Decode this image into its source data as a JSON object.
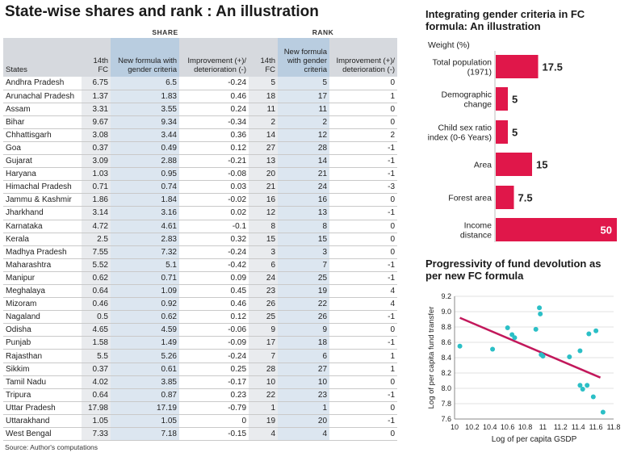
{
  "title": "State-wise shares and rank : An illustration",
  "table": {
    "group_share": "SHARE",
    "group_rank": "RANK",
    "columns": [
      "States",
      "14th FC",
      "New formula with gender criteria",
      "Improvement (+)/ deterioration (-)",
      "14th FC",
      "New formula with gender criteria",
      "Improvement (+)/ deterioration (-)"
    ],
    "rows": [
      [
        "Andhra Pradesh",
        "6.75",
        "6.5",
        "-0.24",
        "5",
        "5",
        "0"
      ],
      [
        "Arunachal Pradesh",
        "1.37",
        "1.83",
        "0.46",
        "18",
        "17",
        "1"
      ],
      [
        "Assam",
        "3.31",
        "3.55",
        "0.24",
        "11",
        "11",
        "0"
      ],
      [
        "Bihar",
        "9.67",
        "9.34",
        "-0.34",
        "2",
        "2",
        "0"
      ],
      [
        "Chhattisgarh",
        "3.08",
        "3.44",
        "0.36",
        "14",
        "12",
        "2"
      ],
      [
        "Goa",
        "0.37",
        "0.49",
        "0.12",
        "27",
        "28",
        "-1"
      ],
      [
        "Gujarat",
        "3.09",
        "2.88",
        "-0.21",
        "13",
        "14",
        "-1"
      ],
      [
        "Haryana",
        "1.03",
        "0.95",
        "-0.08",
        "20",
        "21",
        "-1"
      ],
      [
        "Himachal Pradesh",
        "0.71",
        "0.74",
        "0.03",
        "21",
        "24",
        "-3"
      ],
      [
        "Jammu & Kashmir",
        "1.86",
        "1.84",
        "-0.02",
        "16",
        "16",
        "0"
      ],
      [
        "Jharkhand",
        "3.14",
        "3.16",
        "0.02",
        "12",
        "13",
        "-1"
      ],
      [
        "Karnataka",
        "4.72",
        "4.61",
        "-0.1",
        "8",
        "8",
        "0"
      ],
      [
        "Kerala",
        "2.5",
        "2.83",
        "0.32",
        "15",
        "15",
        "0"
      ],
      [
        "Madhya Pradesh",
        "7.55",
        "7.32",
        "-0.24",
        "3",
        "3",
        "0"
      ],
      [
        "Maharashtra",
        "5.52",
        "5.1",
        "-0.42",
        "6",
        "7",
        "-1"
      ],
      [
        "Manipur",
        "0.62",
        "0.71",
        "0.09",
        "24",
        "25",
        "-1"
      ],
      [
        "Meghalaya",
        "0.64",
        "1.09",
        "0.45",
        "23",
        "19",
        "4"
      ],
      [
        "Mizoram",
        "0.46",
        "0.92",
        "0.46",
        "26",
        "22",
        "4"
      ],
      [
        "Nagaland",
        "0.5",
        "0.62",
        "0.12",
        "25",
        "26",
        "-1"
      ],
      [
        "Odisha",
        "4.65",
        "4.59",
        "-0.06",
        "9",
        "9",
        "0"
      ],
      [
        "Punjab",
        "1.58",
        "1.49",
        "-0.09",
        "17",
        "18",
        "-1"
      ],
      [
        "Rajasthan",
        "5.5",
        "5.26",
        "-0.24",
        "7",
        "6",
        "1"
      ],
      [
        "Sikkim",
        "0.37",
        "0.61",
        "0.25",
        "28",
        "27",
        "1"
      ],
      [
        "Tamil Nadu",
        "4.02",
        "3.85",
        "-0.17",
        "10",
        "10",
        "0"
      ],
      [
        "Tripura",
        "0.64",
        "0.87",
        "0.23",
        "22",
        "23",
        "-1"
      ],
      [
        "Uttar Pradesh",
        "17.98",
        "17.19",
        "-0.79",
        "1",
        "1",
        "0"
      ],
      [
        "Uttarakhand",
        "1.05",
        "1.05",
        "0",
        "19",
        "20",
        "-1"
      ],
      [
        "West Bengal",
        "7.33",
        "7.18",
        "-0.15",
        "4",
        "4",
        "0"
      ]
    ]
  },
  "source": "Source: Author's computations",
  "chart_data": [
    {
      "type": "bar",
      "title": "Integrating gender criteria in FC formula: An illustration",
      "ylabel": "Weight (%)",
      "categories": [
        "Total population (1971)",
        "Demographic change",
        "Child sex ratio index (0-6 Years)",
        "Area",
        "Forest area",
        "Income distance"
      ],
      "values": [
        17.5,
        5,
        5,
        15,
        7.5,
        50
      ],
      "value_labels": [
        "17.5",
        "5",
        "5",
        "15",
        "7.5",
        "50"
      ],
      "color": "#e0174a"
    },
    {
      "type": "scatter",
      "title": "Progressivity of fund devolution as per new FC formula",
      "xlabel": "Log of per capita GSDP",
      "ylabel": "Log of per capita fund transfer",
      "xlim": [
        10,
        11.8
      ],
      "ylim": [
        7.6,
        9.2
      ],
      "xticks": [
        "10",
        "10.2",
        "10.4",
        "10.6",
        "10.8",
        "11",
        "11.2",
        "11.4",
        "11.6",
        "11.8"
      ],
      "yticks": [
        "9.2",
        "9.0",
        "8.8",
        "8.6",
        "8.4",
        "8.2",
        "8.0",
        "7.8",
        "7.6"
      ],
      "x": [
        10.06,
        10.43,
        10.6,
        10.65,
        10.68,
        10.92,
        10.96,
        10.97,
        10.98,
        11.0,
        11.3,
        11.42,
        11.42,
        11.45,
        11.5,
        11.52,
        11.57,
        11.6,
        11.68
      ],
      "y": [
        8.55,
        8.51,
        8.79,
        8.7,
        8.66,
        8.77,
        9.05,
        8.97,
        8.44,
        8.42,
        8.41,
        8.49,
        8.04,
        7.99,
        8.04,
        8.71,
        7.89,
        8.75,
        7.69
      ],
      "trend_x": [
        10.06,
        11.65
      ],
      "trend_y": [
        8.92,
        8.14
      ],
      "point_color": "#2bbfc6",
      "line_color": "#c2185b"
    }
  ]
}
